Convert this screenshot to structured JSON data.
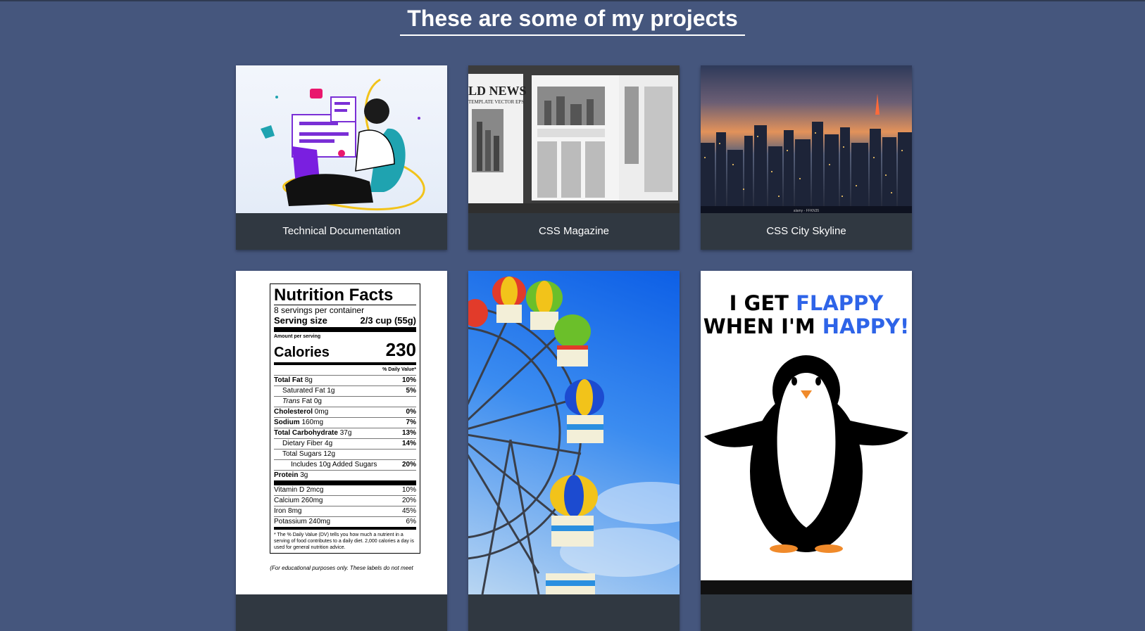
{
  "section": {
    "title": "These are some of my projects"
  },
  "projects": [
    {
      "label": "Technical Documentation"
    },
    {
      "label": "CSS Magazine"
    },
    {
      "label": "CSS City Skyline"
    },
    {
      "label": ""
    },
    {
      "label": ""
    },
    {
      "label": ""
    }
  ],
  "newspaper": {
    "headline": "LD NEWS",
    "sub": "TEMPLATE VECTOR EPS"
  },
  "skyline": {
    "watermark": "alamy - FFKN35"
  },
  "nutrition": {
    "title": "Nutrition Facts",
    "servings": "8 servings per container",
    "serving_label": "Serving size",
    "serving_value": "2/3 cup (55g)",
    "amount_label": "Amount per serving",
    "calories_label": "Calories",
    "calories_value": "230",
    "dv_label": "% Daily Value*",
    "rows": [
      {
        "name": "Total Fat",
        "amount": "8g",
        "dv": "10%"
      },
      {
        "name": "Saturated Fat",
        "amount": "1g",
        "dv": "5%"
      },
      {
        "name": "Trans",
        "amount": "Fat 0g",
        "dv": ""
      },
      {
        "name": "Cholesterol",
        "amount": "0mg",
        "dv": "0%"
      },
      {
        "name": "Sodium",
        "amount": "160mg",
        "dv": "7%"
      },
      {
        "name": "Total Carbohydrate",
        "amount": "37g",
        "dv": "13%"
      },
      {
        "name": "Dietary Fiber",
        "amount": "4g",
        "dv": "14%"
      },
      {
        "name": "Total Sugars",
        "amount": "12g",
        "dv": ""
      },
      {
        "name": "Includes 10g Added Sugars",
        "amount": "",
        "dv": "20%"
      },
      {
        "name": "Protein",
        "amount": "3g",
        "dv": ""
      }
    ],
    "vitamins": [
      {
        "name": "Vitamin D 2mcg",
        "dv": "10%"
      },
      {
        "name": "Calcium 260mg",
        "dv": "20%"
      },
      {
        "name": "Iron 8mg",
        "dv": "45%"
      },
      {
        "name": "Potassium 240mg",
        "dv": "6%"
      }
    ],
    "footnote": "* The % Daily Value (DV) tells you how much a nutrient in a serving of food contributes to a daily diet. 2,000 calories a day is used for general nutrition advice.",
    "educational": "(For educational purposes only. These labels do not meet"
  },
  "flappy": {
    "line1a": "I GET ",
    "line1b": "FLAPPY",
    "line2a": "WHEN I'M ",
    "line2b": "HAPPY!"
  }
}
